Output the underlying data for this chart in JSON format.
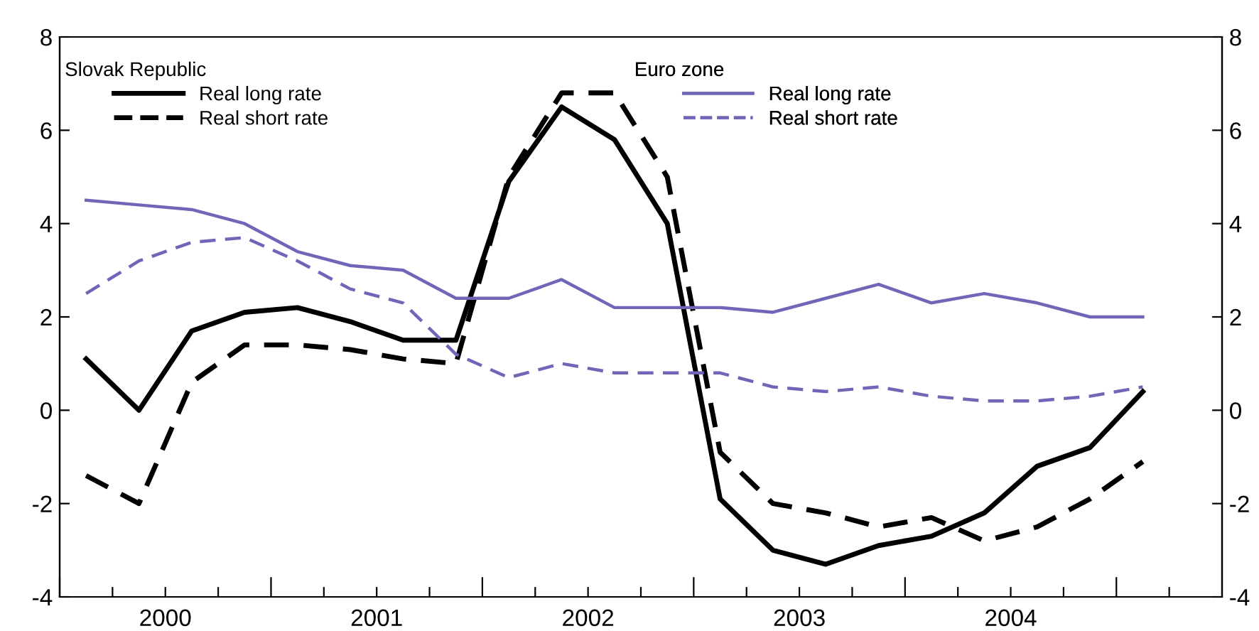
{
  "chart_data": {
    "type": "line",
    "legend_title": [
      "Slovak Republic",
      "Euro zone"
    ],
    "legend": "top",
    "x": [
      2000.125,
      2000.375,
      2000.625,
      2000.875,
      2001.125,
      2001.375,
      2001.625,
      2001.875,
      2002.125,
      2002.375,
      2002.625,
      2002.875,
      2003.125,
      2003.375,
      2003.625,
      2003.875,
      2004.125,
      2004.375,
      2004.625,
      2004.875,
      2005.125
    ],
    "series": [
      {
        "name": "Real long rate",
        "color": "#000000",
        "line_style": "solid",
        "values": [
          1.1,
          0.0,
          1.7,
          2.1,
          2.2,
          1.9,
          1.5,
          1.5,
          4.9,
          6.5,
          5.8,
          4.0,
          -1.9,
          -3.0,
          -3.3,
          -2.9,
          -2.7,
          -2.2,
          -1.2,
          -0.8,
          0.4
        ]
      },
      {
        "name": "Real short rate",
        "color": "#000000",
        "line_style": "dashed",
        "values": [
          -1.4,
          -2.0,
          0.6,
          1.4,
          1.4,
          1.3,
          1.1,
          1.0,
          5.0,
          6.8,
          6.8,
          5.0,
          -0.9,
          -2.0,
          -2.2,
          -2.5,
          -2.3,
          -2.8,
          -2.5,
          -1.9,
          -1.1
        ]
      },
      {
        "name": "Real long rate",
        "color": "#6f66b8",
        "line_style": "solid",
        "values": [
          4.5,
          4.4,
          4.3,
          4.0,
          3.4,
          3.1,
          3.0,
          2.4,
          2.4,
          2.8,
          2.2,
          2.2,
          2.2,
          2.1,
          2.4,
          2.7,
          2.3,
          2.5,
          2.3,
          2.0,
          2.0
        ]
      },
      {
        "name": "Real short rate",
        "color": "#6f66b8",
        "line_style": "dashed",
        "values": [
          2.5,
          3.2,
          3.6,
          3.7,
          3.2,
          2.6,
          2.3,
          1.2,
          0.7,
          1.0,
          0.8,
          0.8,
          0.8,
          0.5,
          0.4,
          0.5,
          0.3,
          0.2,
          0.2,
          0.3,
          0.5
        ]
      }
    ],
    "xlim": [
      2000,
      2005.5
    ],
    "xticks": [
      {
        "value": 2000,
        "label": null
      },
      {
        "value": 2000.25,
        "label": null
      },
      {
        "value": 2000.5,
        "label": "2000"
      },
      {
        "value": 2000.75,
        "label": null
      },
      {
        "value": 2001,
        "label": null
      },
      {
        "value": 2001.25,
        "label": null
      },
      {
        "value": 2001.5,
        "label": "2001"
      },
      {
        "value": 2001.75,
        "label": null
      },
      {
        "value": 2002,
        "label": null
      },
      {
        "value": 2002.25,
        "label": null
      },
      {
        "value": 2002.5,
        "label": "2002"
      },
      {
        "value": 2002.75,
        "label": null
      },
      {
        "value": 2003,
        "label": null
      },
      {
        "value": 2003.25,
        "label": null
      },
      {
        "value": 2003.5,
        "label": "2003"
      },
      {
        "value": 2003.75,
        "label": null
      },
      {
        "value": 2004,
        "label": null
      },
      {
        "value": 2004.25,
        "label": null
      },
      {
        "value": 2004.5,
        "label": "2004"
      },
      {
        "value": 2004.75,
        "label": null
      },
      {
        "value": 2005,
        "label": null
      },
      {
        "value": 2005.25,
        "label": null
      }
    ],
    "ylim": [
      -4,
      8
    ],
    "yticks": [
      -4,
      -2,
      0,
      2,
      4,
      6,
      8
    ],
    "y2lim": [
      -4,
      8
    ],
    "y2ticks": [
      -4,
      -2,
      0,
      2,
      4,
      6,
      8
    ],
    "grid": false
  }
}
